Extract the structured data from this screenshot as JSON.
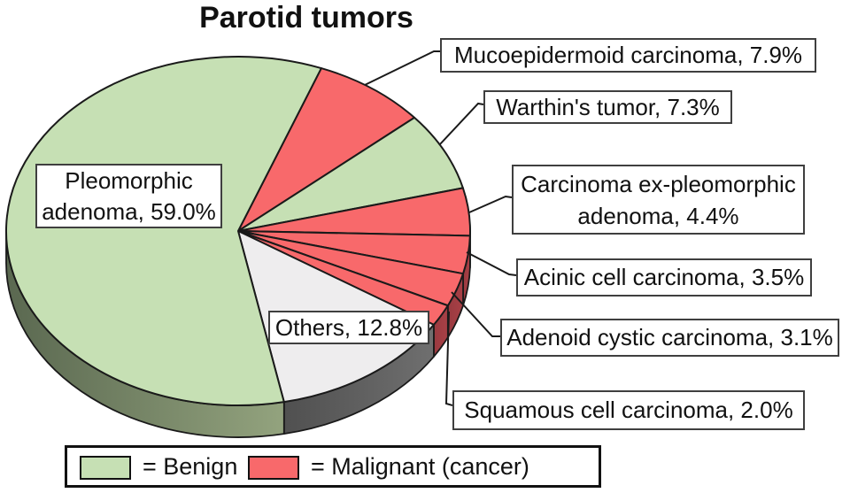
{
  "title": "Parotid tumors",
  "callouts": {
    "mucoepidermoid": "Mucoepidermoid carcinoma, 7.9%",
    "warthins": "Warthin's tumor, 7.3%",
    "carcinoma_ex_pleomorphic": "Carcinoma ex-pleomorphic adenoma, 4.4%",
    "acinic": "Acinic cell carcinoma, 3.5%",
    "adenoid_cystic": "Adenoid cystic carcinoma, 3.1%",
    "squamous": "Squamous cell carcinoma, 2.0%",
    "pleomorphic": "Pleomorphic adenoma, 59.0%",
    "others": "Others, 12.8%"
  },
  "legend": {
    "benign_label": "= Benign",
    "malignant_label": "= Malignant (cancer)"
  },
  "chart_data": {
    "type": "pie",
    "style": "3d",
    "title": "Parotid tumors",
    "start_angle_deg": 21,
    "direction": "clockwise",
    "outline_color": "#1a1a1a",
    "slices": [
      {
        "label": "Mucoepidermoid carcinoma",
        "value": 7.9,
        "category": "malignant"
      },
      {
        "label": "Warthin's tumor",
        "value": 7.3,
        "category": "benign"
      },
      {
        "label": "Carcinoma ex-pleomorphic adenoma",
        "value": 4.4,
        "category": "malignant"
      },
      {
        "label": "Acinic cell carcinoma",
        "value": 3.5,
        "category": "malignant"
      },
      {
        "label": "Adenoid cystic carcinoma",
        "value": 3.1,
        "category": "malignant"
      },
      {
        "label": "Squamous cell carcinoma",
        "value": 2.0,
        "category": "malignant"
      },
      {
        "label": "Others",
        "value": 12.8,
        "category": "other"
      },
      {
        "label": "Pleomorphic adenoma",
        "value": 59.0,
        "category": "benign"
      }
    ],
    "colors": {
      "benign": "#c6e0b4",
      "malignant": "#f8696b",
      "other": "#eeedee",
      "benign_side": [
        "#5a6850",
        "#93a37e"
      ],
      "malignant_side": [
        "#9a3a40",
        "#a84046"
      ],
      "other_side": [
        "#505050",
        "#6f6f6f"
      ]
    },
    "legend_entries": [
      {
        "label": "= Benign",
        "category": "benign"
      },
      {
        "label": "= Malignant (cancer)",
        "category": "malignant"
      }
    ]
  }
}
